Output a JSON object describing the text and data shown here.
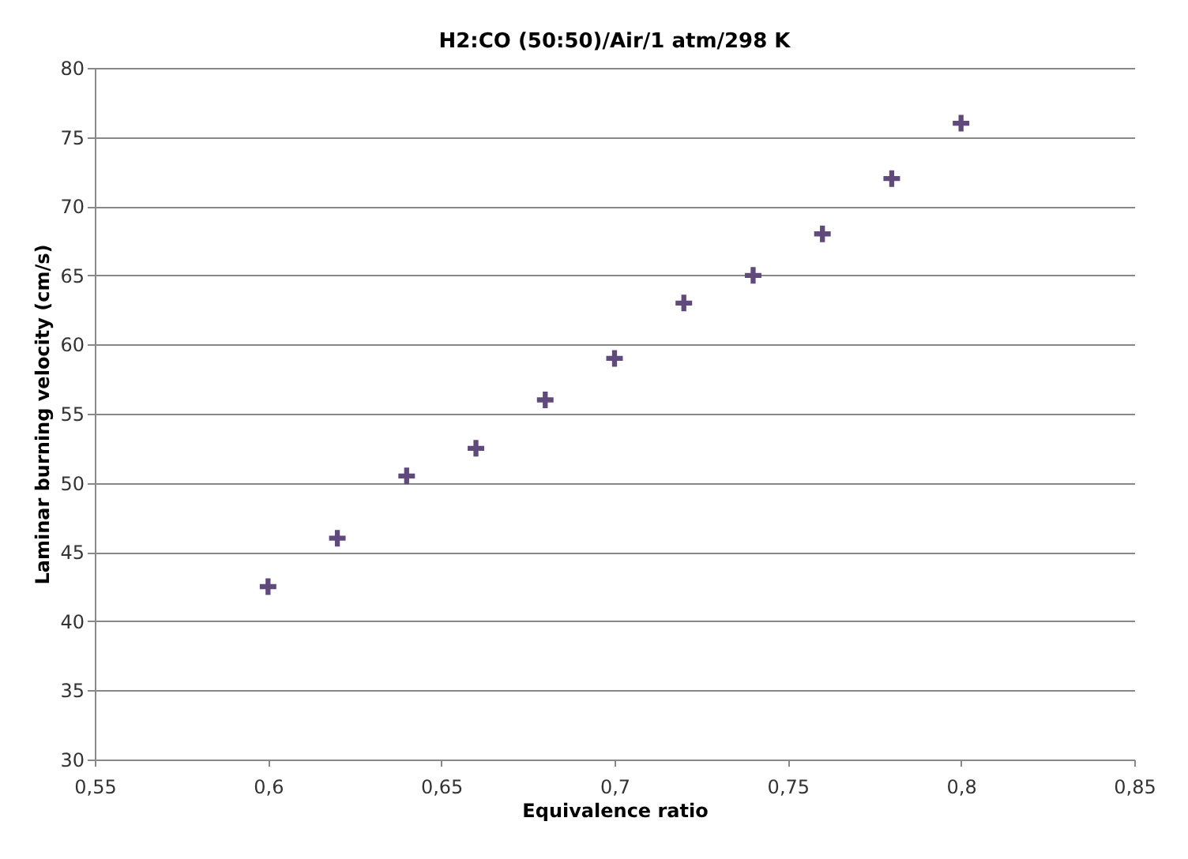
{
  "chart_data": {
    "type": "scatter",
    "title": "H2:CO (50:50)/Air/1 atm/298 K",
    "xlabel": "Equivalence ratio",
    "ylabel": "Laminar burning velocity (cm/s)",
    "x": [
      0.6,
      0.62,
      0.64,
      0.66,
      0.68,
      0.7,
      0.72,
      0.74,
      0.76,
      0.78,
      0.8
    ],
    "series": [
      {
        "color": "#604a7b",
        "values": [
          42.5,
          46.0,
          50.5,
          52.5,
          56.0,
          59.0,
          63.0,
          65.0,
          68.0,
          72.0,
          76.0
        ]
      }
    ],
    "xlim": [
      0.55,
      0.85
    ],
    "xticks": [
      {
        "value": 0.55,
        "label": "0,55"
      },
      {
        "value": 0.6,
        "label": "0,6"
      },
      {
        "value": 0.65,
        "label": "0,65"
      },
      {
        "value": 0.7,
        "label": "0,7"
      },
      {
        "value": 0.75,
        "label": "0,75"
      },
      {
        "value": 0.8,
        "label": "0,8"
      },
      {
        "value": 0.85,
        "label": "0,85"
      }
    ],
    "ylim": [
      30,
      80
    ],
    "yticks": [
      30,
      35,
      40,
      45,
      50,
      55,
      60,
      65,
      70,
      75,
      80
    ],
    "grid": "y",
    "marker": "cross",
    "legend": false
  }
}
